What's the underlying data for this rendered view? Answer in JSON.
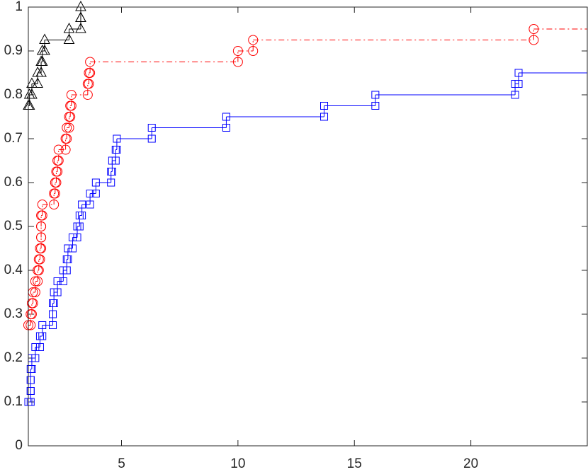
{
  "chart_data": {
    "type": "stairs",
    "xlim": [
      1,
      25
    ],
    "xticks": [
      5,
      10,
      15,
      20
    ],
    "ylim": [
      0,
      1
    ],
    "yticks": [
      0,
      0.1,
      0.2,
      0.3,
      0.4,
      0.5,
      0.6,
      0.7,
      0.8,
      0.9,
      1
    ],
    "grid": false,
    "series": [
      {
        "color": "#0000ff",
        "line_style": "solid",
        "marker": "square",
        "x": [
          1.0,
          1.1,
          1.1,
          1.1,
          1.15,
          1.3,
          1.5,
          1.6,
          2.05,
          2.05,
          2.1,
          2.25,
          2.5,
          2.65,
          2.7,
          2.9,
          3.1,
          3.2,
          3.3,
          3.65,
          3.9,
          4.55,
          4.6,
          4.75,
          4.8,
          6.3,
          9.5,
          13.7,
          15.9,
          21.9,
          22.05
        ],
        "values": [
          0.1,
          0.125,
          0.15,
          0.175,
          0.2,
          0.225,
          0.25,
          0.275,
          0.3,
          0.325,
          0.35,
          0.375,
          0.4,
          0.425,
          0.45,
          0.475,
          0.5,
          0.525,
          0.55,
          0.575,
          0.6,
          0.625,
          0.65,
          0.675,
          0.7,
          0.725,
          0.75,
          0.775,
          0.8,
          0.825,
          0.85
        ]
      },
      {
        "color": "#ff0000",
        "line_style": "dash-dot",
        "marker": "circle",
        "x": [
          1.0,
          1.1,
          1.15,
          1.2,
          1.3,
          1.4,
          1.45,
          1.5,
          1.55,
          1.55,
          1.55,
          1.6,
          2.1,
          2.15,
          2.2,
          2.25,
          2.3,
          2.6,
          2.65,
          2.75,
          2.8,
          2.85,
          3.55,
          3.6,
          3.65,
          10.0,
          10.65,
          22.7
        ],
        "values": [
          0.275,
          0.3,
          0.325,
          0.35,
          0.375,
          0.4,
          0.425,
          0.45,
          0.475,
          0.5,
          0.525,
          0.55,
          0.575,
          0.6,
          0.625,
          0.65,
          0.675,
          0.7,
          0.725,
          0.75,
          0.775,
          0.8,
          0.825,
          0.85,
          0.875,
          0.9,
          0.925,
          0.95
        ]
      },
      {
        "color": "#000000",
        "line_style": "solid",
        "marker": "triangle",
        "x": [
          1.0,
          1.05,
          1.15,
          1.4,
          1.55,
          1.6,
          1.7,
          2.75,
          3.25,
          3.25
        ],
        "values": [
          0.775,
          0.8,
          0.825,
          0.85,
          0.875,
          0.9,
          0.925,
          0.95,
          0.975,
          1.0
        ]
      }
    ]
  }
}
